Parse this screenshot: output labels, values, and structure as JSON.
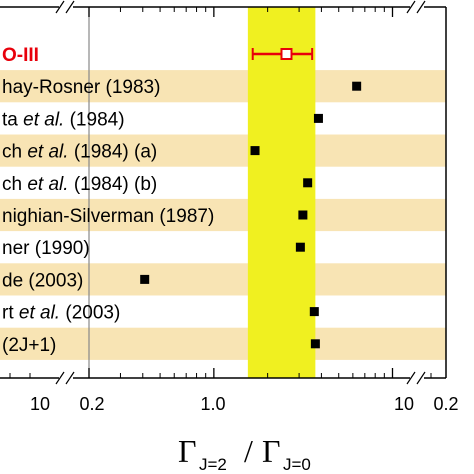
{
  "chart_data": {
    "type": "scatter",
    "x_scale": "log",
    "xlim": [
      0.2,
      10
    ],
    "x_ticks": [
      "10",
      "0.2",
      "1.0",
      "10",
      "0.2"
    ],
    "xlabel": {
      "symbol": "Γ",
      "sub_num": "J=2",
      "slash": "/",
      "sub_den": "J=0"
    },
    "colors": {
      "band": "#f8e4b4",
      "yellow": "#f0f020",
      "red": "#e8000b",
      "marker": "#000000"
    },
    "measurement": {
      "label": "O-III",
      "value": 2.55,
      "err_low": 1.65,
      "err_high": 3.55,
      "band_low": 1.55,
      "band_high": 3.7
    },
    "series": [
      {
        "label": "hay-Rosner (1983)",
        "value": 6.3,
        "italic": ""
      },
      {
        "label": "ta et al. (1984)",
        "value": 3.85,
        "italic": "et al."
      },
      {
        "label": "ch et al. (1984) (a)",
        "value": 1.7,
        "italic": "et al."
      },
      {
        "label": "ch et al. (1984) (b)",
        "value": 3.35,
        "italic": "et al."
      },
      {
        "label": "nighian-Silverman (1987)",
        "value": 3.15,
        "italic": ""
      },
      {
        "label": "ner (1990)",
        "value": 3.05,
        "italic": ""
      },
      {
        "label": "de (2003)",
        "value": 0.41,
        "italic": ""
      },
      {
        "label": "rt et al. (2003)",
        "value": 3.65,
        "italic": "et al."
      },
      {
        "label": "(2J+1)",
        "value": 3.7,
        "italic": ""
      }
    ]
  }
}
